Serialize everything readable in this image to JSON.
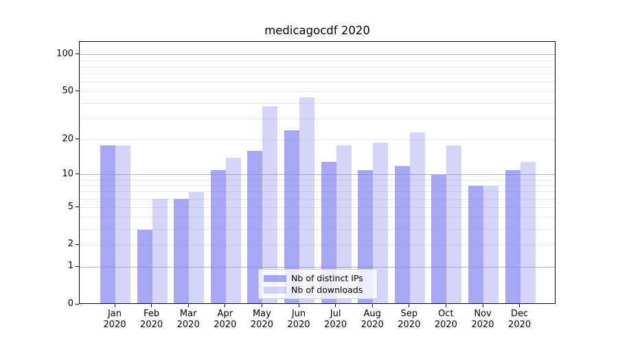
{
  "chart_data": {
    "type": "bar",
    "title": "medicagocdf 2020",
    "categories": [
      "Jan 2020",
      "Feb 2020",
      "Mar 2020",
      "Apr 2020",
      "May 2020",
      "Jun 2020",
      "Jul 2020",
      "Aug 2020",
      "Sep 2020",
      "Oct 2020",
      "Nov 2020",
      "Dec 2020"
    ],
    "x_tick_labels": [
      {
        "line1": "Jan",
        "line2": "2020"
      },
      {
        "line1": "Feb",
        "line2": "2020"
      },
      {
        "line1": "Mar",
        "line2": "2020"
      },
      {
        "line1": "Apr",
        "line2": "2020"
      },
      {
        "line1": "May",
        "line2": "2020"
      },
      {
        "line1": "Jun",
        "line2": "2020"
      },
      {
        "line1": "Jul",
        "line2": "2020"
      },
      {
        "line1": "Aug",
        "line2": "2020"
      },
      {
        "line1": "Sep",
        "line2": "2020"
      },
      {
        "line1": "Oct",
        "line2": "2020"
      },
      {
        "line1": "Nov",
        "line2": "2020"
      },
      {
        "line1": "Dec",
        "line2": "2020"
      }
    ],
    "series": [
      {
        "name": "Nb of distinct IPs",
        "color": "#a7a7f3",
        "css_color": "rgba(129,129,241,0.70)",
        "values": [
          18,
          3,
          6,
          11,
          16,
          24,
          13,
          11,
          12,
          10,
          8,
          11
        ]
      },
      {
        "name": "Nb of downloads",
        "color": "#d6d6f9",
        "css_color": "rgba(129,129,241,0.33)",
        "values": [
          18,
          6,
          7,
          14,
          38,
          45,
          18,
          19,
          23,
          18,
          8,
          13
        ]
      }
    ],
    "yscale": "log10(value+1)",
    "ylim": [
      0,
      128
    ],
    "y_ticks": [
      {
        "value": 100,
        "label": "100"
      },
      {
        "value": 50,
        "label": "50"
      },
      {
        "value": 20,
        "label": "20"
      },
      {
        "value": 10,
        "label": "10"
      },
      {
        "value": 5,
        "label": "5"
      },
      {
        "value": 2,
        "label": "2"
      },
      {
        "value": 1,
        "label": "1"
      },
      {
        "value": 0,
        "label": "0"
      }
    ],
    "y_major_gridlines": [
      1,
      10,
      100
    ],
    "y_minor_gridlines": [
      2,
      3,
      4,
      5,
      6,
      7,
      8,
      9,
      20,
      30,
      40,
      50,
      60,
      70,
      80,
      90
    ],
    "grid": true,
    "legend_position": "lower center",
    "xlabel": "",
    "ylabel": ""
  },
  "colors": {
    "bar_distinct_ips": "#a7a7f3",
    "bar_downloads": "#d6d6f9",
    "major_grid": "#b3b3b3",
    "minor_grid": "#e8e8e8",
    "spine": "#000000",
    "text": "#000000",
    "legend_border": "#cccccc",
    "background": "#ffffff"
  }
}
